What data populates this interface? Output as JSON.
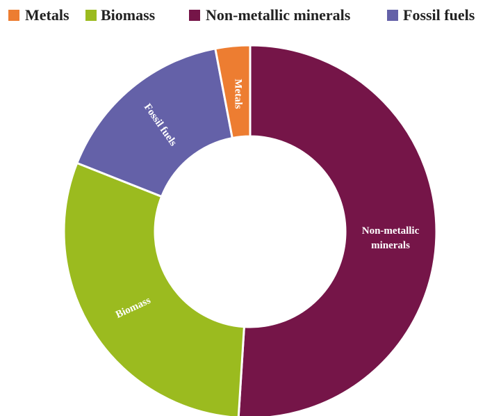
{
  "chart_data": {
    "type": "donut",
    "categories": [
      "Metals",
      "Biomass",
      "Non-metallic minerals",
      "Fossil fuels"
    ],
    "values": [
      3,
      30,
      51,
      16
    ],
    "colors": [
      "#ed7d31",
      "#9bbb1f",
      "#751548",
      "#6461a8"
    ],
    "legend": "top"
  }
}
